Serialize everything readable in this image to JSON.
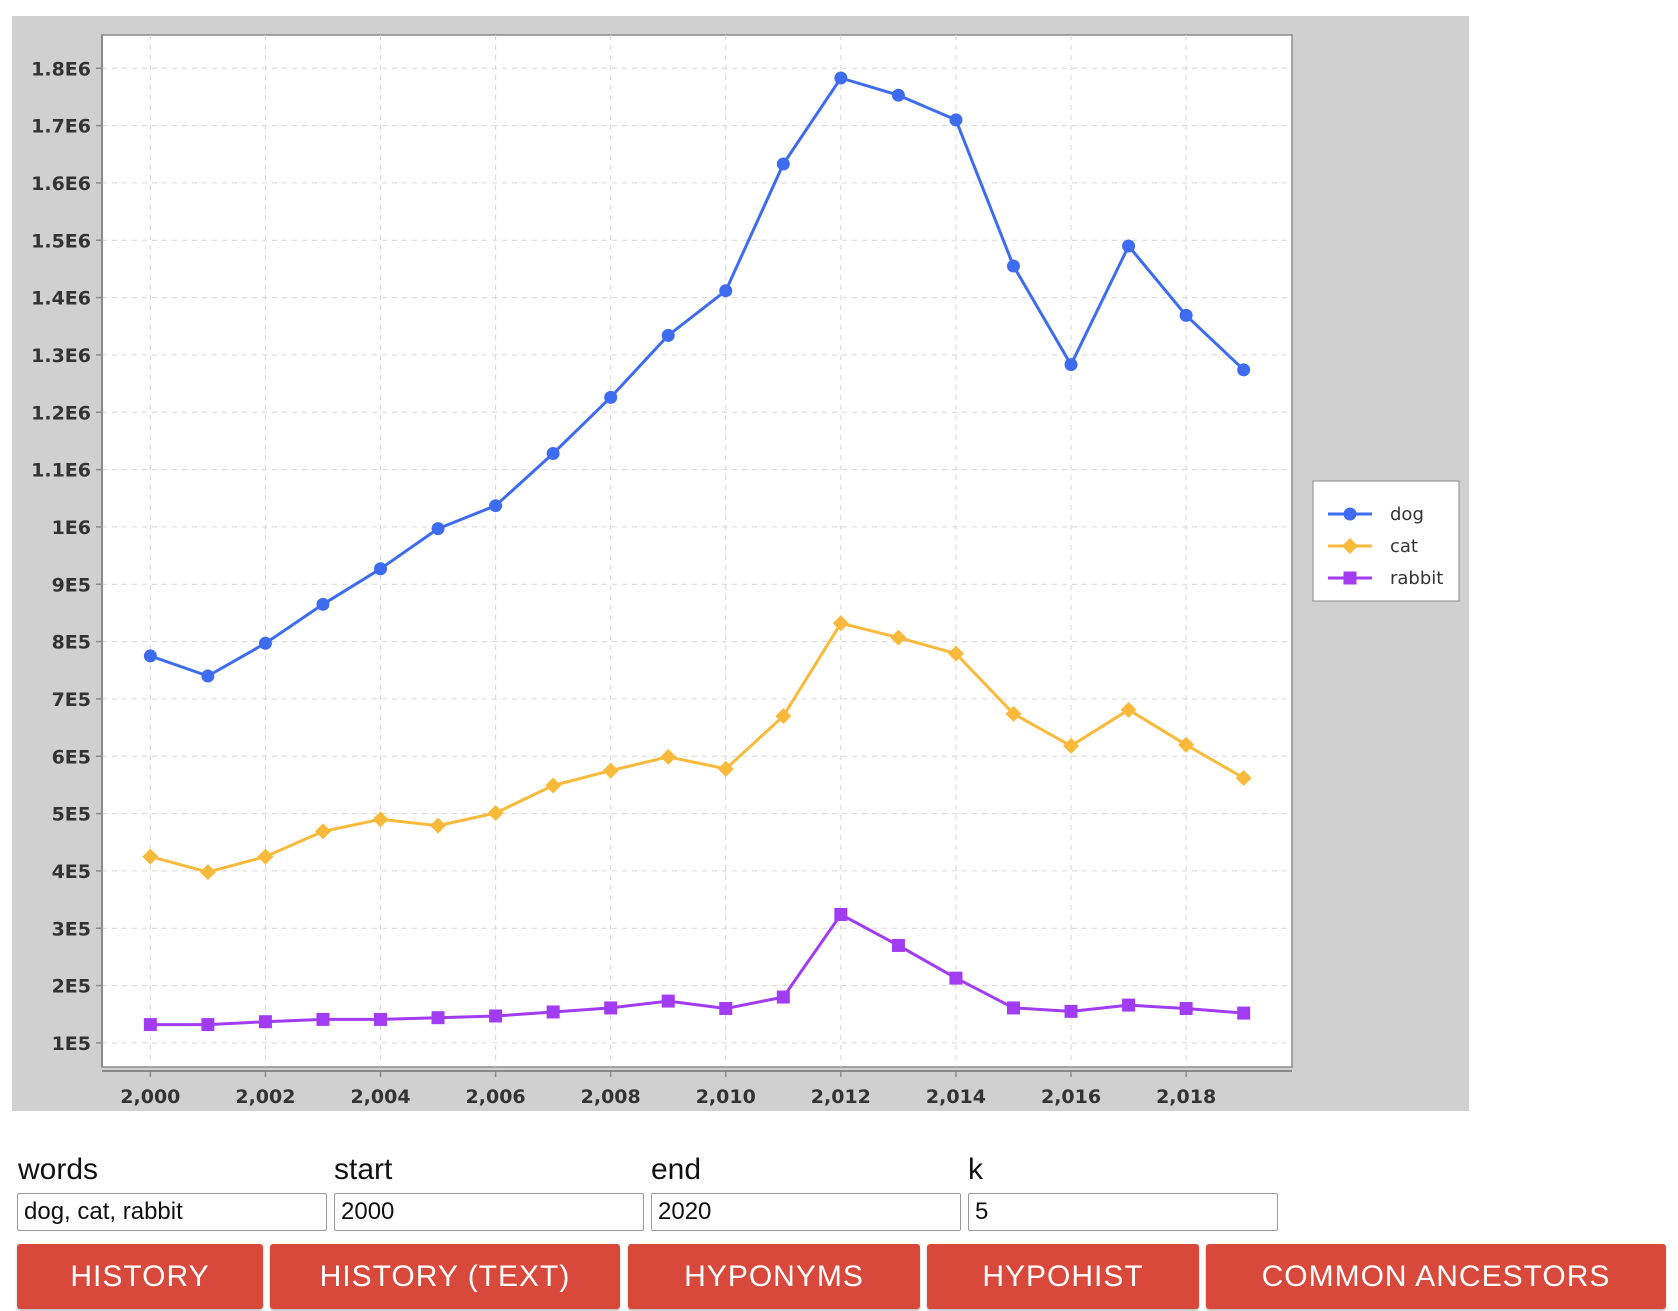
{
  "chart_data": {
    "type": "line",
    "title": "",
    "xlabel": "",
    "ylabel": "",
    "x": [
      2000,
      2001,
      2002,
      2003,
      2004,
      2005,
      2006,
      2007,
      2008,
      2009,
      2010,
      2011,
      2012,
      2013,
      2014,
      2015,
      2016,
      2017,
      2018,
      2019
    ],
    "xlim": [
      1999.16,
      2019.84
    ],
    "ylim": [
      58000,
      1858000
    ],
    "x_ticks": [
      2000,
      2002,
      2004,
      2006,
      2008,
      2010,
      2012,
      2014,
      2016,
      2018
    ],
    "x_tick_labels": [
      "2,000",
      "2,002",
      "2,004",
      "2,006",
      "2,008",
      "2,010",
      "2,012",
      "2,014",
      "2,016",
      "2,018"
    ],
    "y_ticks": [
      100000,
      200000,
      300000,
      400000,
      500000,
      600000,
      700000,
      800000,
      900000,
      1000000,
      1100000,
      1200000,
      1300000,
      1400000,
      1500000,
      1600000,
      1700000,
      1800000
    ],
    "y_tick_labels": [
      "1E5",
      "2E5",
      "3E5",
      "4E5",
      "5E5",
      "6E5",
      "7E5",
      "8E5",
      "9E5",
      "1E6",
      "1.1E6",
      "1.2E6",
      "1.3E6",
      "1.4E6",
      "1.5E6",
      "1.6E6",
      "1.7E6",
      "1.8E6"
    ],
    "grid": true,
    "legend_position": "right",
    "series": [
      {
        "name": "dog",
        "color": "#3d6cf0",
        "marker": "circle",
        "values": [
          775000,
          740000,
          797000,
          865000,
          927000,
          997000,
          1037000,
          1128000,
          1226000,
          1334000,
          1412000,
          1633000,
          1783000,
          1753000,
          1710000,
          1455000,
          1283000,
          1490000,
          1369000,
          1274000
        ]
      },
      {
        "name": "cat",
        "color": "#f9b93a",
        "marker": "diamond",
        "values": [
          425000,
          398000,
          425000,
          469000,
          490000,
          479000,
          501000,
          549000,
          575000,
          599000,
          578000,
          670000,
          832000,
          807000,
          779000,
          674000,
          618000,
          681000,
          620000,
          562000
        ]
      },
      {
        "name": "rabbit",
        "color": "#a23cf2",
        "marker": "square",
        "values": [
          132000,
          132000,
          137000,
          141000,
          141000,
          144000,
          147000,
          154000,
          161000,
          173000,
          160000,
          180000,
          324000,
          270000,
          213000,
          161000,
          155000,
          166000,
          160000,
          152000
        ]
      }
    ]
  },
  "form": {
    "words": {
      "label": "words",
      "value": "dog, cat, rabbit"
    },
    "start": {
      "label": "start",
      "value": "2000"
    },
    "end": {
      "label": "end",
      "value": "2020"
    },
    "k": {
      "label": "k",
      "value": "5"
    }
  },
  "buttons": {
    "history": "HISTORY",
    "history_text": "HISTORY (TEXT)",
    "hyponyms": "HYPONYMS",
    "hypohist": "HYPOHIST",
    "common_ancestors": "COMMON ANCESTORS"
  }
}
